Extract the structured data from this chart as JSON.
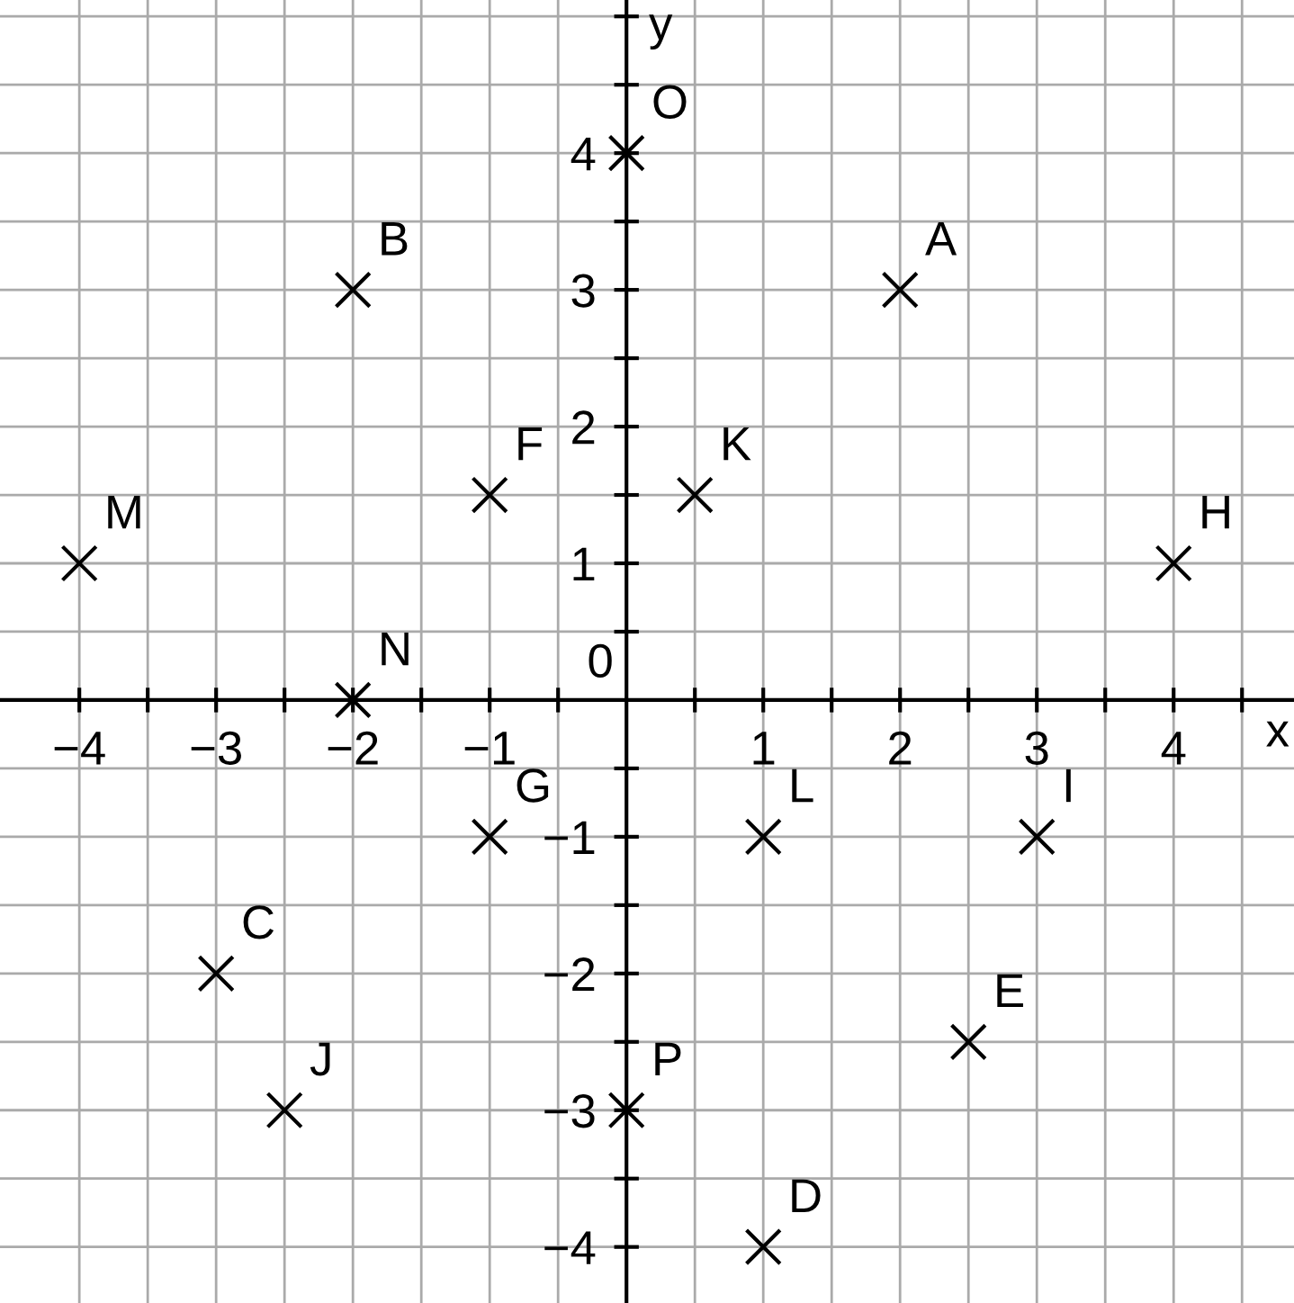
{
  "chart_data": {
    "type": "scatter",
    "xlabel": "x",
    "ylabel": "y",
    "x": [
      2,
      -2,
      -3,
      1,
      2.5,
      -1,
      -1,
      4,
      3,
      -2.5,
      0.5,
      1,
      -4,
      -2,
      0,
      0
    ],
    "values": [
      3,
      3,
      -2,
      -4,
      -2.5,
      1.5,
      -1,
      1,
      -1,
      -3,
      1.5,
      -1,
      1,
      0,
      4,
      -3
    ],
    "color": "#000000",
    "marker": "cross",
    "grid": true,
    "xlim": [
      -4.58,
      4.88
    ],
    "ylim": [
      -4.41,
      5.12
    ],
    "xticks": [
      {
        "value": -4,
        "label": "−4"
      },
      {
        "value": -3.5,
        "label": null
      },
      {
        "value": -3,
        "label": "−3"
      },
      {
        "value": -2.5,
        "label": null
      },
      {
        "value": -2,
        "label": "−2"
      },
      {
        "value": -1.5,
        "label": null
      },
      {
        "value": -1,
        "label": "−1"
      },
      {
        "value": -0.5,
        "label": null
      },
      {
        "value": 0.5,
        "label": null
      },
      1,
      {
        "value": 1.5,
        "label": null
      },
      2,
      {
        "value": 2.5,
        "label": null
      },
      3,
      {
        "value": 3.5,
        "label": null
      },
      4,
      {
        "value": 4.5,
        "label": null
      }
    ],
    "yticks": [
      {
        "value": -4,
        "label": "−4"
      },
      {
        "value": -3.5,
        "label": null
      },
      {
        "value": -3,
        "label": "−3"
      },
      {
        "value": -2.5,
        "label": null
      },
      {
        "value": -2,
        "label": "−2"
      },
      {
        "value": -1.5,
        "label": null
      },
      {
        "value": -1,
        "label": "−1"
      },
      {
        "value": -0.5,
        "label": null
      },
      {
        "value": 0.5,
        "label": null
      },
      1,
      {
        "value": 1.5,
        "label": null
      },
      2,
      {
        "value": 2.5,
        "label": null
      },
      3,
      {
        "value": 3.5,
        "label": null
      },
      4,
      {
        "value": 4.5,
        "label": null
      },
      {
        "value": 5,
        "label": null
      }
    ],
    "annotations": [
      {
        "text": "A",
        "x": 2,
        "y": 3
      },
      {
        "text": "B",
        "x": -2,
        "y": 3
      },
      {
        "text": "C",
        "x": -3,
        "y": -2
      },
      {
        "text": "D",
        "x": 1,
        "y": -4
      },
      {
        "text": "E",
        "x": 2.5,
        "y": -2.5
      },
      {
        "text": "F",
        "x": -1,
        "y": 1.5
      },
      {
        "text": "G",
        "x": -1,
        "y": -1
      },
      {
        "text": "H",
        "x": 4,
        "y": 1
      },
      {
        "text": "I",
        "x": 3,
        "y": -1
      },
      {
        "text": "J",
        "x": -2.5,
        "y": -3
      },
      {
        "text": "K",
        "x": 0.5,
        "y": 1.5
      },
      {
        "text": "L",
        "x": 1,
        "y": -1
      },
      {
        "text": "M",
        "x": -4,
        "y": 1
      },
      {
        "text": "N",
        "x": -2,
        "y": 0
      },
      {
        "text": "O",
        "x": 0,
        "y": 4
      },
      {
        "text": "P",
        "x": 0,
        "y": -3
      },
      "0"
    ]
  }
}
